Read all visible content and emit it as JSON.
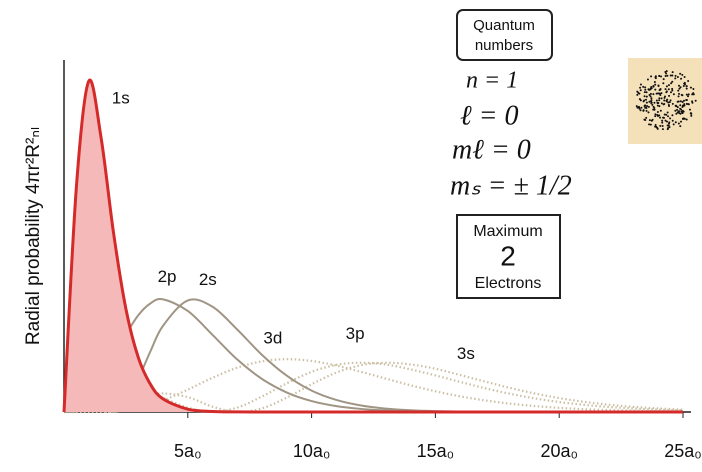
{
  "chart_data": {
    "type": "line",
    "y_label": "Radial probability 4πr²R²ₙₗ",
    "x": [
      0,
      0.5,
      1,
      1.5,
      2,
      2.5,
      3,
      3.5,
      4,
      5,
      6,
      7,
      8,
      9,
      10,
      11,
      12,
      13,
      14,
      15,
      16,
      17,
      18,
      19,
      20,
      21,
      22,
      23,
      24,
      25
    ],
    "xlim": [
      0,
      25
    ],
    "xticks": [
      {
        "value": 5,
        "label": "5a₀"
      },
      {
        "value": 10,
        "label": "10a₀"
      },
      {
        "value": 15,
        "label": "15a₀"
      },
      {
        "value": 20,
        "label": "20a₀"
      },
      {
        "value": 25,
        "label": "25a₀"
      }
    ],
    "ylim": [
      0,
      100
    ],
    "series": [
      {
        "name": "1s",
        "color": "#d42a2a",
        "fill": "#f6b9b9",
        "style": "solid",
        "values": [
          0,
          63.9,
          94,
          77.8,
          50.9,
          29.3,
          15.5,
          7.76,
          3.73,
          0.79,
          0.15,
          0.03,
          0,
          0,
          0,
          0,
          0,
          0,
          0,
          0,
          0,
          0,
          0,
          0,
          0,
          0,
          0,
          0,
          0,
          0
        ]
      },
      {
        "name": "2p",
        "color": "#a09584",
        "style": "solid",
        "values": [
          0,
          0.26,
          2.51,
          7.71,
          14.78,
          21.9,
          27.5,
          30.9,
          32,
          28.7,
          21.9,
          14.9,
          9.38,
          5.53,
          3.1,
          1.67,
          0.87,
          0.44,
          0.22,
          0.11,
          0.05,
          0.02,
          0,
          0,
          0,
          0,
          0,
          0,
          0,
          0
        ]
      },
      {
        "name": "2s",
        "color": "#a09584",
        "style": "solid",
        "values": [
          0,
          7.14,
          7.7,
          2.63,
          0,
          2.69,
          9.38,
          17.4,
          24.5,
          31.7,
          29.9,
          23.4,
          16.2,
          10.3,
          6.08,
          3.43,
          1.85,
          0.97,
          0.49,
          0.24,
          0.12,
          0.05,
          0.02,
          0,
          0,
          0,
          0,
          0,
          0,
          0
        ]
      },
      {
        "name": "3d",
        "color": "#cbbfa4",
        "style": "dotted",
        "values": [
          0,
          0,
          0,
          0.05,
          0.19,
          0.53,
          1.12,
          2.05,
          3.24,
          6.35,
          9.73,
          12.6,
          14.4,
          15,
          14.5,
          13.2,
          11.4,
          9.48,
          7.59,
          5.89,
          4.45,
          3.29,
          2.38,
          1.69,
          1.18,
          0.81,
          0.55,
          0.37,
          0.25,
          0.16
        ]
      },
      {
        "name": "3p",
        "color": "#cbbfa4",
        "style": "dotted",
        "values": [
          0,
          0.076,
          0.72,
          2.11,
          3.77,
          5.05,
          5.51,
          5.08,
          3.98,
          1.25,
          0,
          1.26,
          4.42,
          8.18,
          11.4,
          13.4,
          14,
          13.5,
          12.1,
          10.4,
          8.54,
          6.76,
          5.19,
          3.88,
          2.84,
          2.03,
          1.43,
          0.99,
          0.68,
          0.46
        ]
      },
      {
        "name": "3s",
        "color": "#cbbfa4",
        "style": "dotted",
        "values": [
          0,
          1.72,
          1.74,
          0.47,
          0.03,
          1,
          2.76,
          4.4,
          5.27,
          4.22,
          1.5,
          0.01,
          1.05,
          4.1,
          7.88,
          11.2,
          13.3,
          14,
          13.5,
          12.3,
          10.5,
          8.66,
          6.87,
          5.29,
          3.96,
          2.9,
          2.08,
          1.46,
          1.01,
          0.69
        ]
      }
    ],
    "quantum_box": {
      "title": [
        "Quantum",
        "numbers"
      ],
      "lines": [
        "n = 1",
        "ℓ = 0",
        "mℓ = 0",
        "mₛ = ± 1/2"
      ]
    },
    "max_box": {
      "lines": [
        "Maximum",
        "2",
        "Electrons"
      ]
    }
  }
}
